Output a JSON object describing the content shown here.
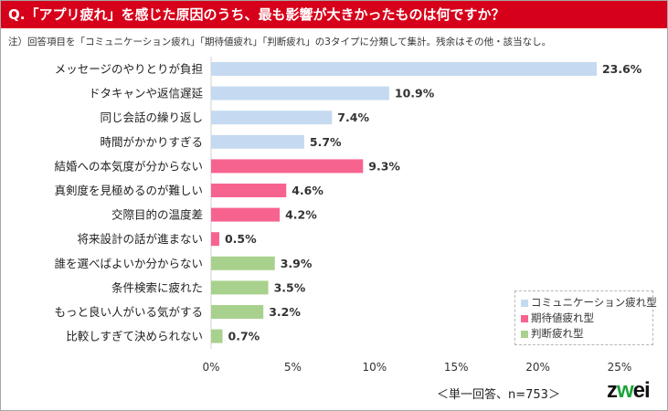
{
  "header": {
    "title": "Q.「アプリ疲れ」を感じた原因のうち、最も影響が大きかったものは何ですか？"
  },
  "note": "注）回答項目を「コミュニケーション疲れ」「期待値疲れ」「判断疲れ」の3タイプに分類して集計。残余はその他・該当なし。",
  "footer": {
    "sample": "＜単一回答、n=753＞"
  },
  "logo": {
    "text": "zwei"
  },
  "colors": {
    "コミュニケーション疲れ型": "#c5daf0",
    "期待値疲れ型": "#f7638f",
    "判断疲れ型": "#a9d18e",
    "header": "#d7001a"
  },
  "chart_data": {
    "type": "bar",
    "orientation": "horizontal",
    "xlim": [
      0,
      25
    ],
    "ticks": [
      "0%",
      "5%",
      "10%",
      "15%",
      "20%",
      "25%"
    ],
    "legend_position": "bottom-right",
    "legend": [
      "コミュニケーション疲れ型",
      "期待値疲れ型",
      "判断疲れ型"
    ],
    "categories": [
      "メッセージのやりとりが負担",
      "ドタキャンや返信遅延",
      "同じ会話の繰り返し",
      "時間がかかりすぎる",
      "結婚への本気度が分からない",
      "真剣度を見極めるのが難しい",
      "交際目的の温度差",
      "将来設計の話が進まない",
      "誰を選べばよいか分からない",
      "条件検索に疲れた",
      "もっと良い人がいる気がする",
      "比較しすぎて決められない"
    ],
    "values": [
      23.6,
      10.9,
      7.4,
      5.7,
      9.3,
      4.6,
      4.2,
      0.5,
      3.9,
      3.5,
      3.2,
      0.7
    ],
    "labels": [
      "23.6%",
      "10.9%",
      "7.4%",
      "5.7%",
      "9.3%",
      "4.6%",
      "4.2%",
      "0.5%",
      "3.9%",
      "3.5%",
      "3.2%",
      "0.7%"
    ],
    "groups": [
      "コミュニケーション疲れ型",
      "コミュニケーション疲れ型",
      "コミュニケーション疲れ型",
      "コミュニケーション疲れ型",
      "期待値疲れ型",
      "期待値疲れ型",
      "期待値疲れ型",
      "期待値疲れ型",
      "判断疲れ型",
      "判断疲れ型",
      "判断疲れ型",
      "判断疲れ型"
    ]
  }
}
